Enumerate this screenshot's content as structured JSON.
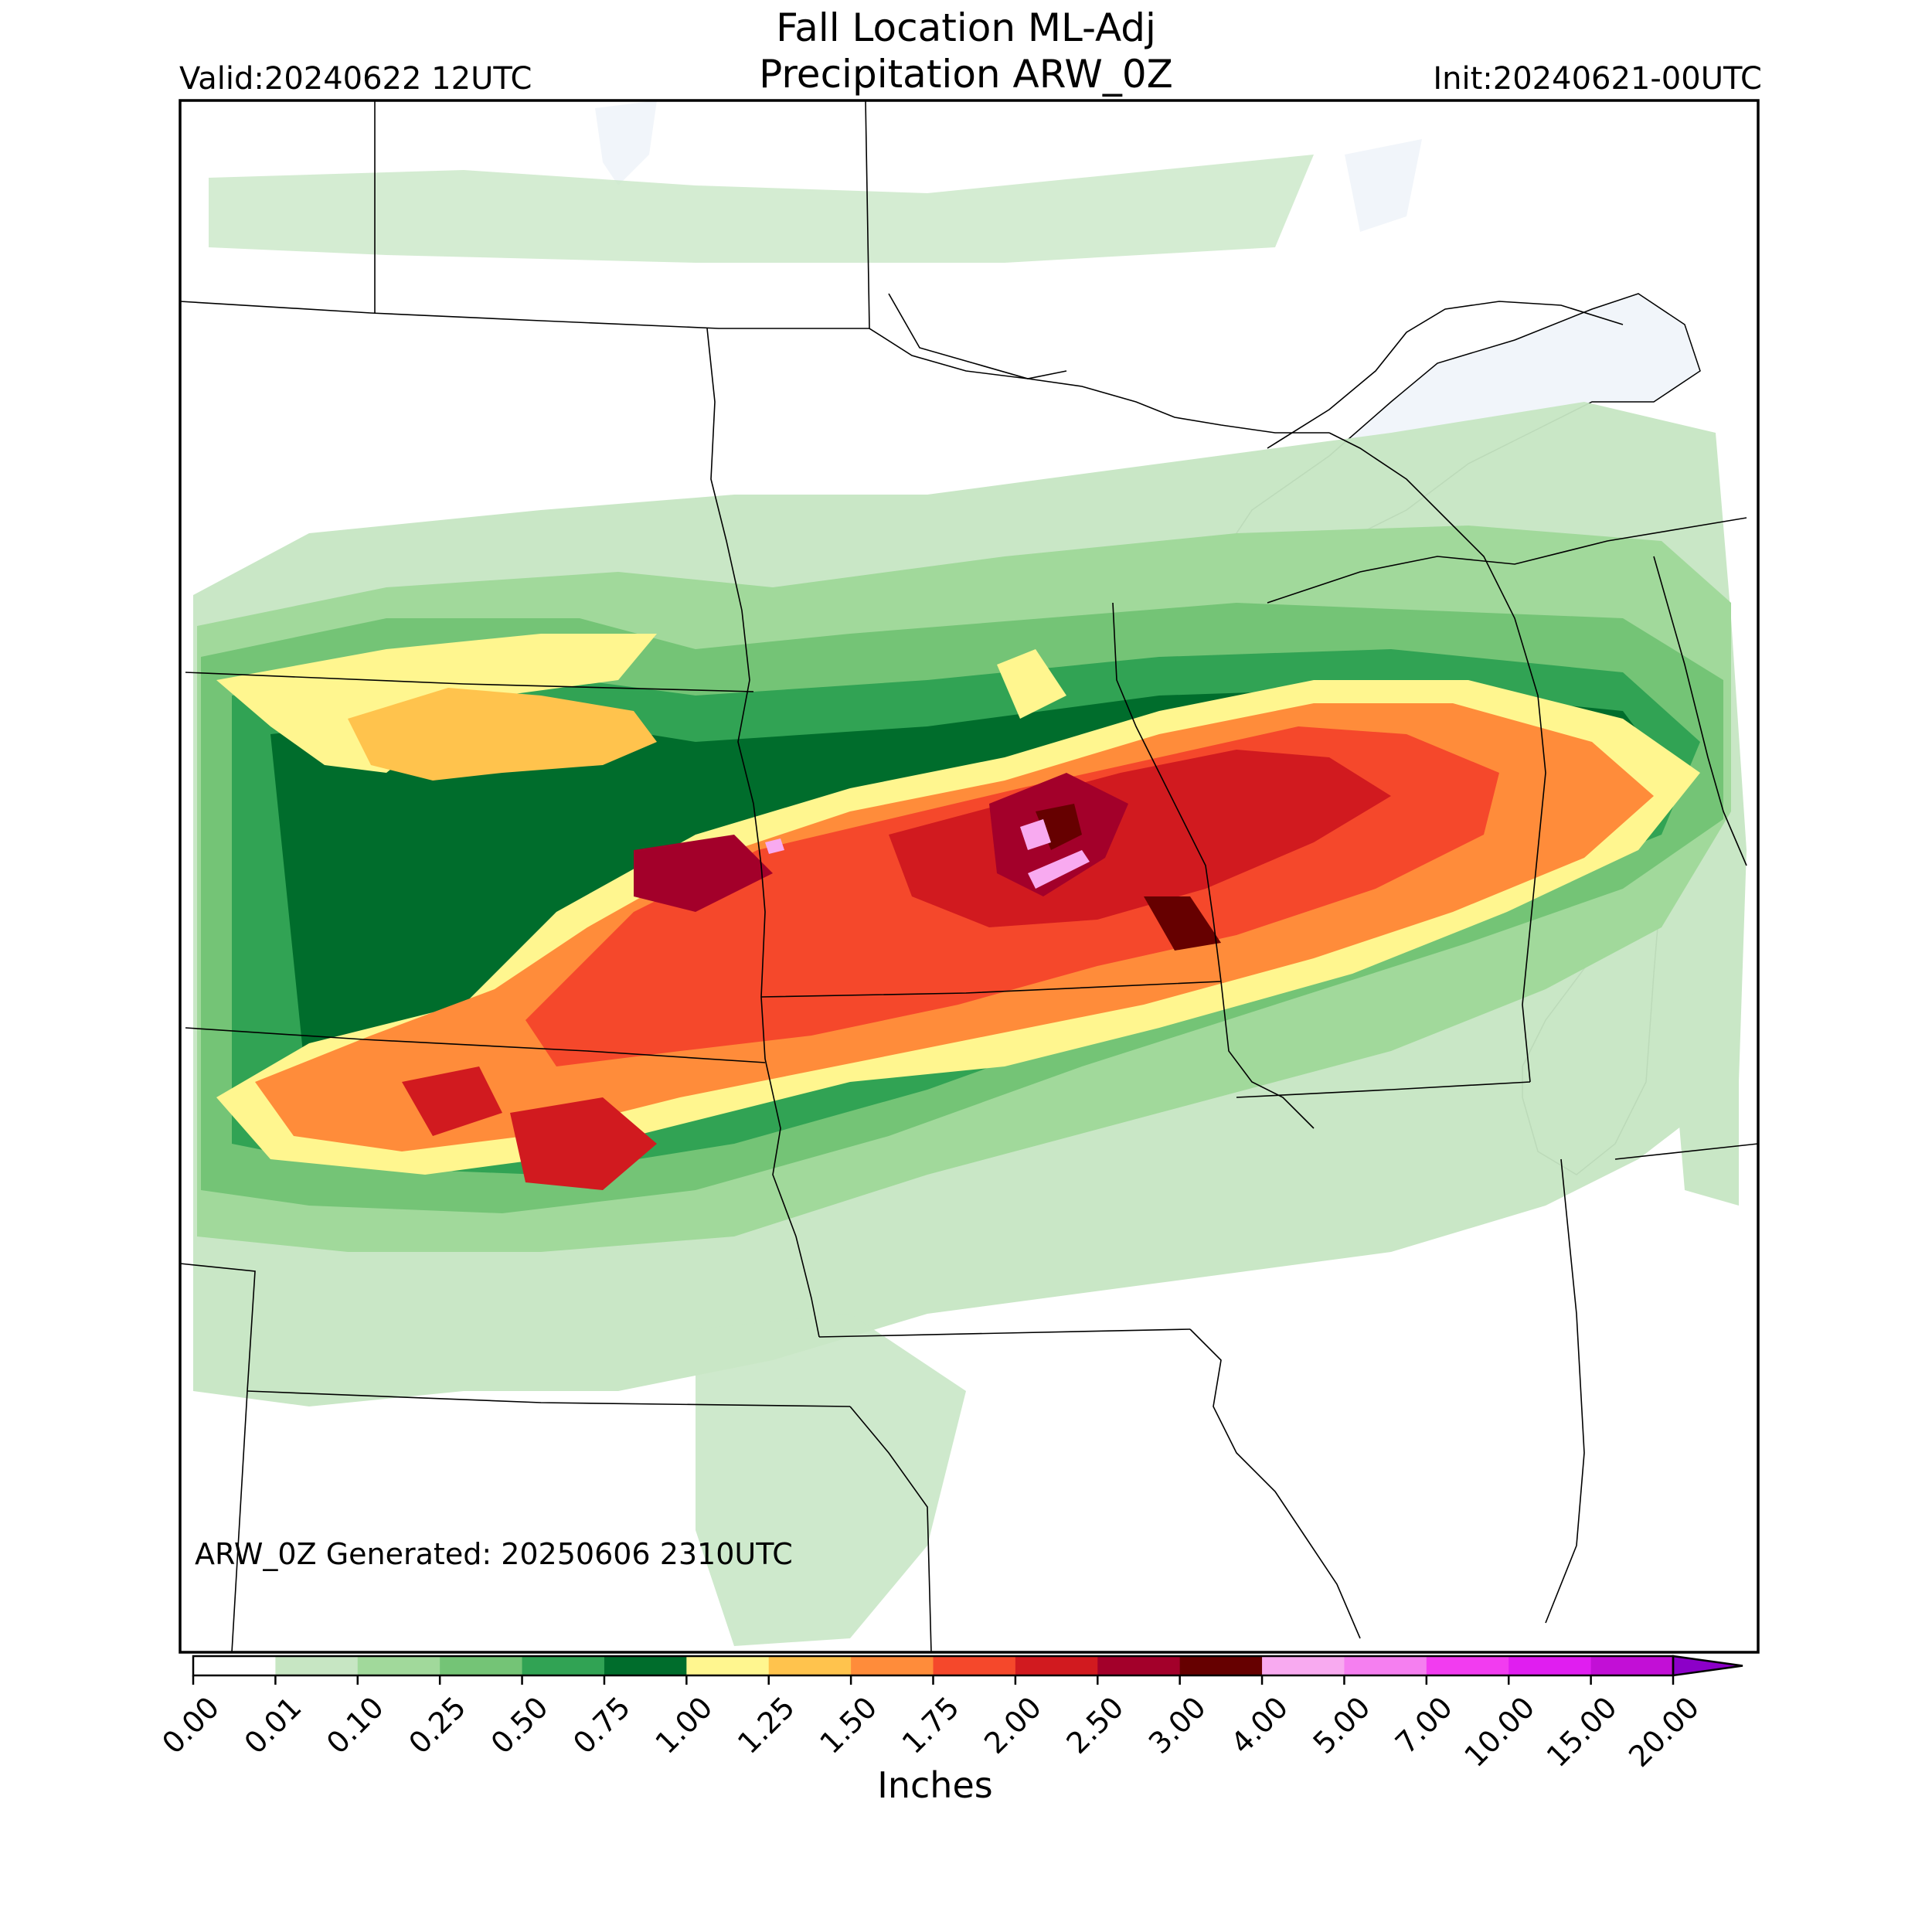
{
  "header": {
    "title_line1": "Fall Location ML-Adj",
    "title_line2": "Precipitation ARW_0Z",
    "valid": "Valid:20240622 12UTC",
    "init": "Init:20240621-00UTC"
  },
  "footer_note": "ARW_0Z Generated: 20250606 2310UTC",
  "colorbar": {
    "units": "Inches",
    "ticks": [
      "0.00",
      "0.01",
      "0.10",
      "0.25",
      "0.50",
      "0.75",
      "1.00",
      "1.25",
      "1.50",
      "1.75",
      "2.00",
      "2.50",
      "3.00",
      "4.00",
      "5.00",
      "7.00",
      "10.00",
      "15.00",
      "20.00"
    ],
    "colors": [
      "#ffffff",
      "#c7e6c3",
      "#a1d99b",
      "#74c476",
      "#31a354",
      "#006d2c",
      "#fff68f",
      "#ffc34d",
      "#ff8c3a",
      "#f5482b",
      "#d11a1f",
      "#a3002a",
      "#660000",
      "#f8aaf0",
      "#f57ff0",
      "#f23cf0",
      "#e01ef0",
      "#c20fd6",
      "#8c00c8"
    ],
    "extend": "max"
  },
  "map": {
    "land_color": "#ffffff",
    "lake_color": "#f1f5fa",
    "border_color": "#000000"
  }
}
